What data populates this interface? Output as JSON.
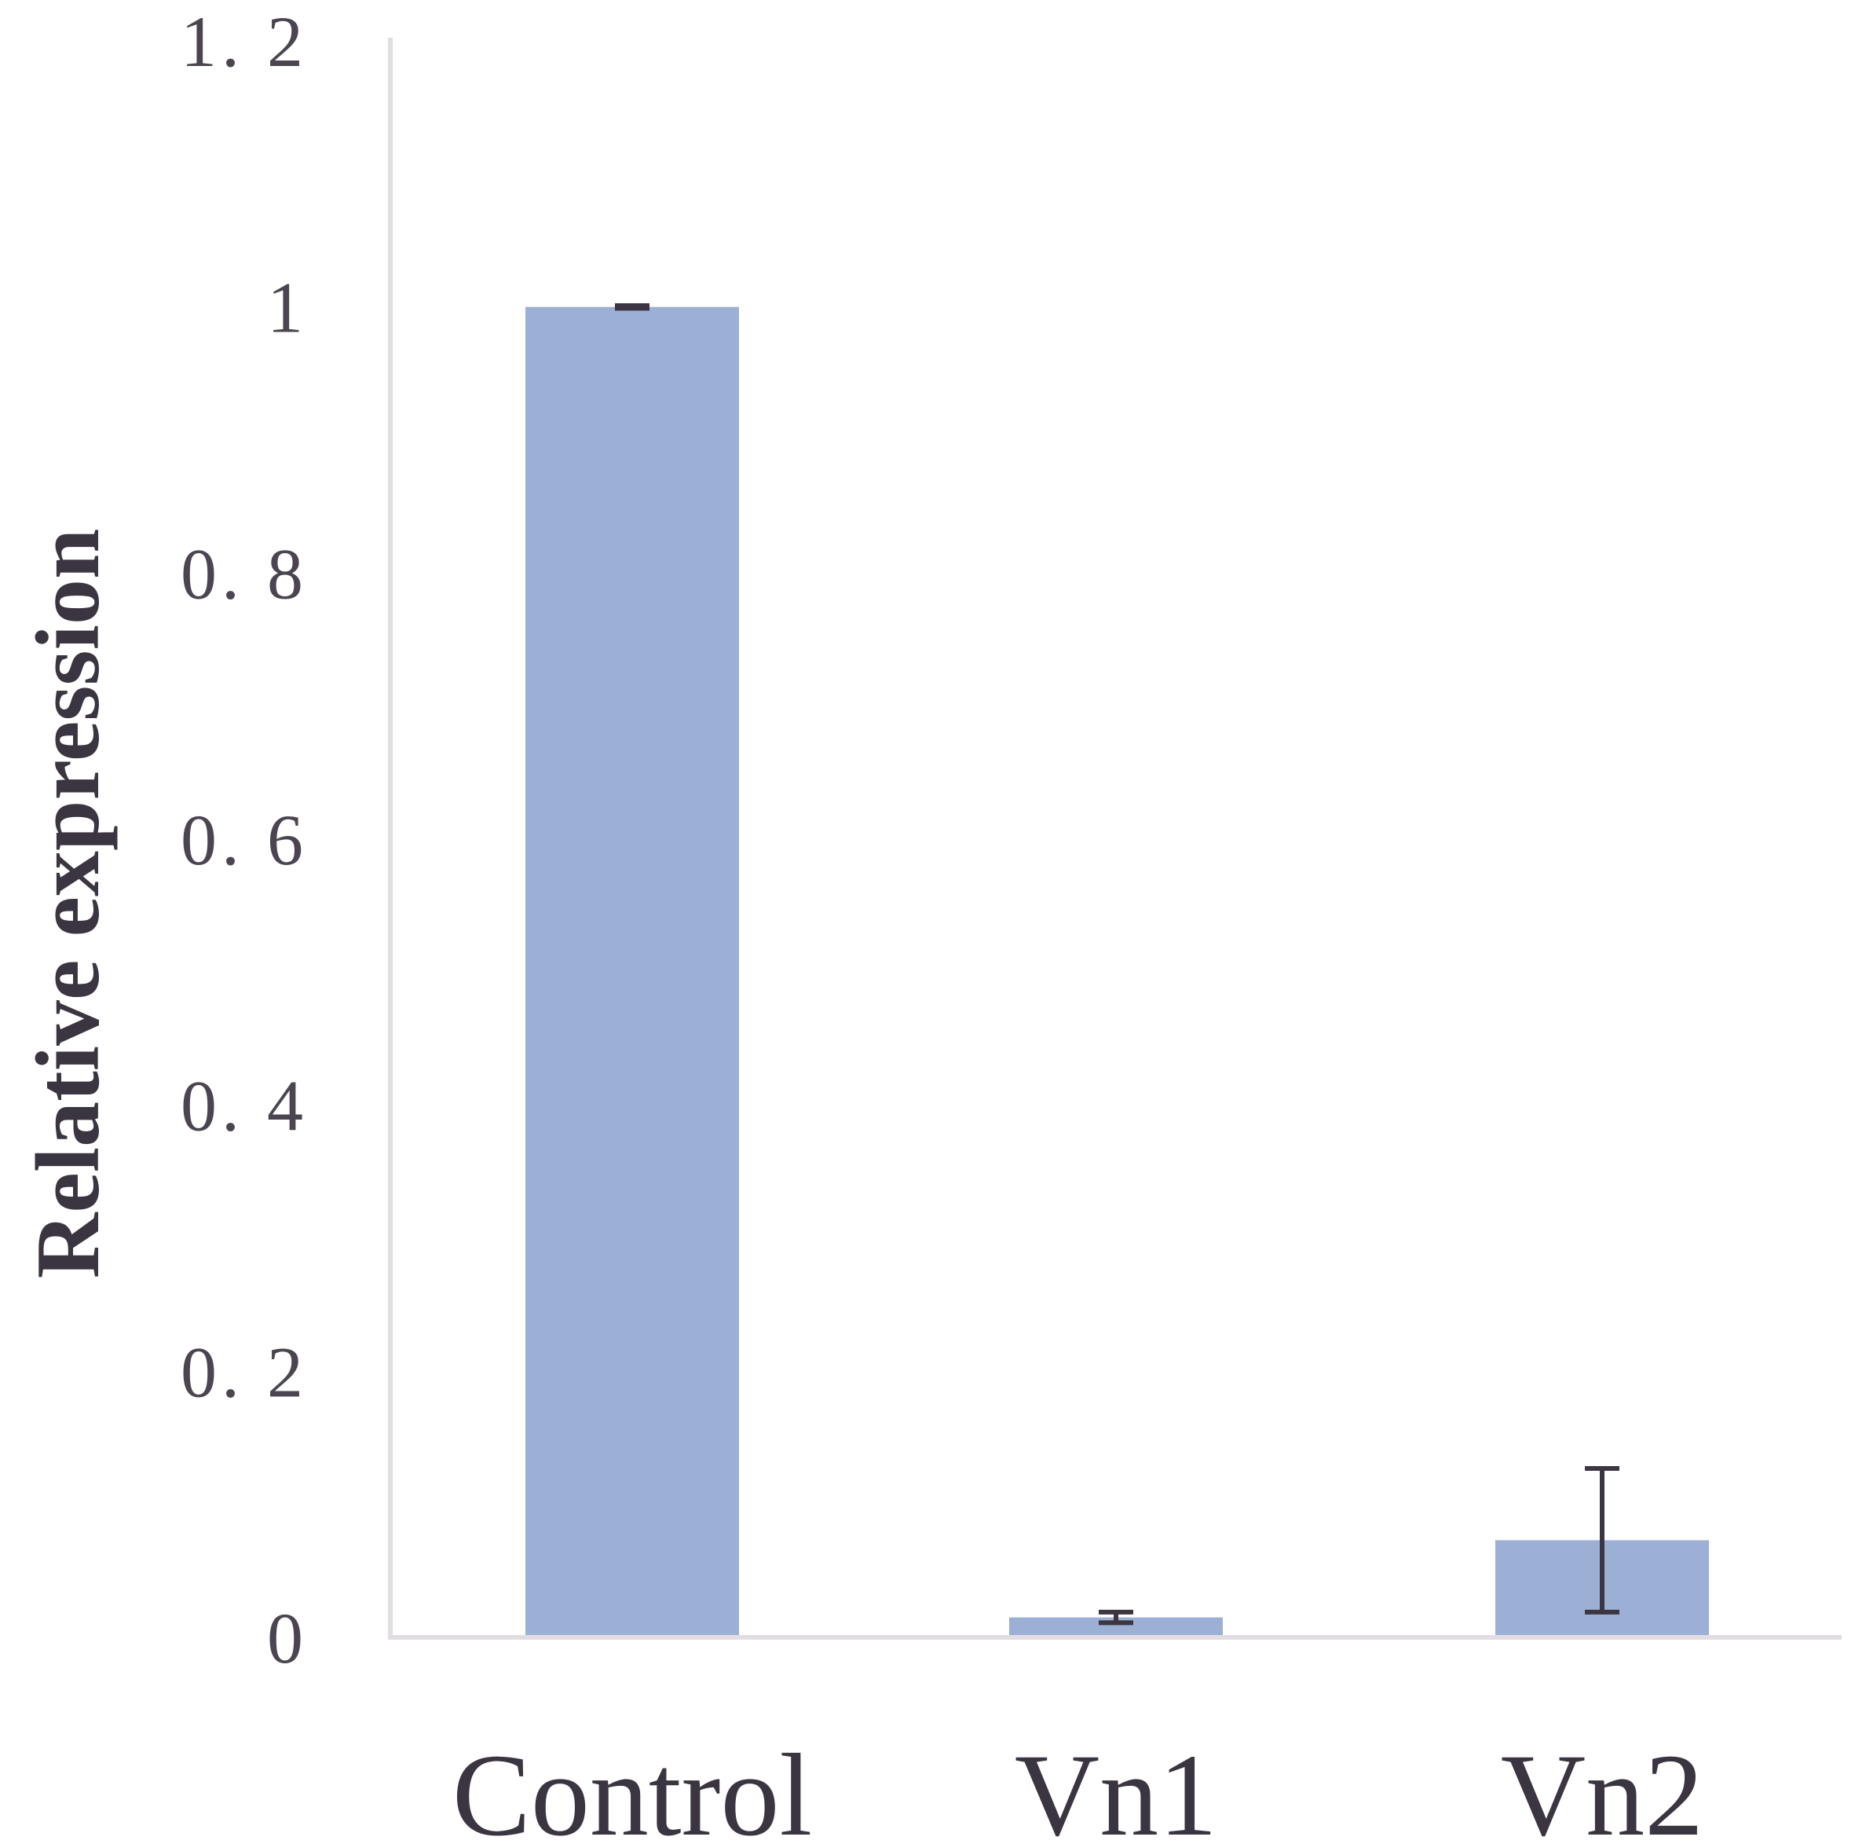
{
  "chart_data": {
    "type": "bar",
    "categories": [
      "Control",
      "Vn1",
      "Vn2"
    ],
    "values": [
      1.0,
      0.015,
      0.073
    ],
    "errors": [
      0.001,
      0.004,
      0.054
    ],
    "xlabel": "",
    "ylabel": "Relative expression",
    "ylim": [
      0,
      1.2
    ],
    "yticks": [
      0,
      0.2,
      0.4,
      0.6,
      0.8,
      1.0,
      1.2
    ],
    "ytick_labels": [
      "0",
      "0. 2",
      "0. 4",
      "0. 6",
      "0. 8",
      "1",
      "1. 2"
    ],
    "grid": false,
    "legend": "none",
    "colors": {
      "bar": "#9bb0d4",
      "error_bar": "#3c3542",
      "axis": "#e2dde2",
      "text": "#4a4550"
    }
  }
}
